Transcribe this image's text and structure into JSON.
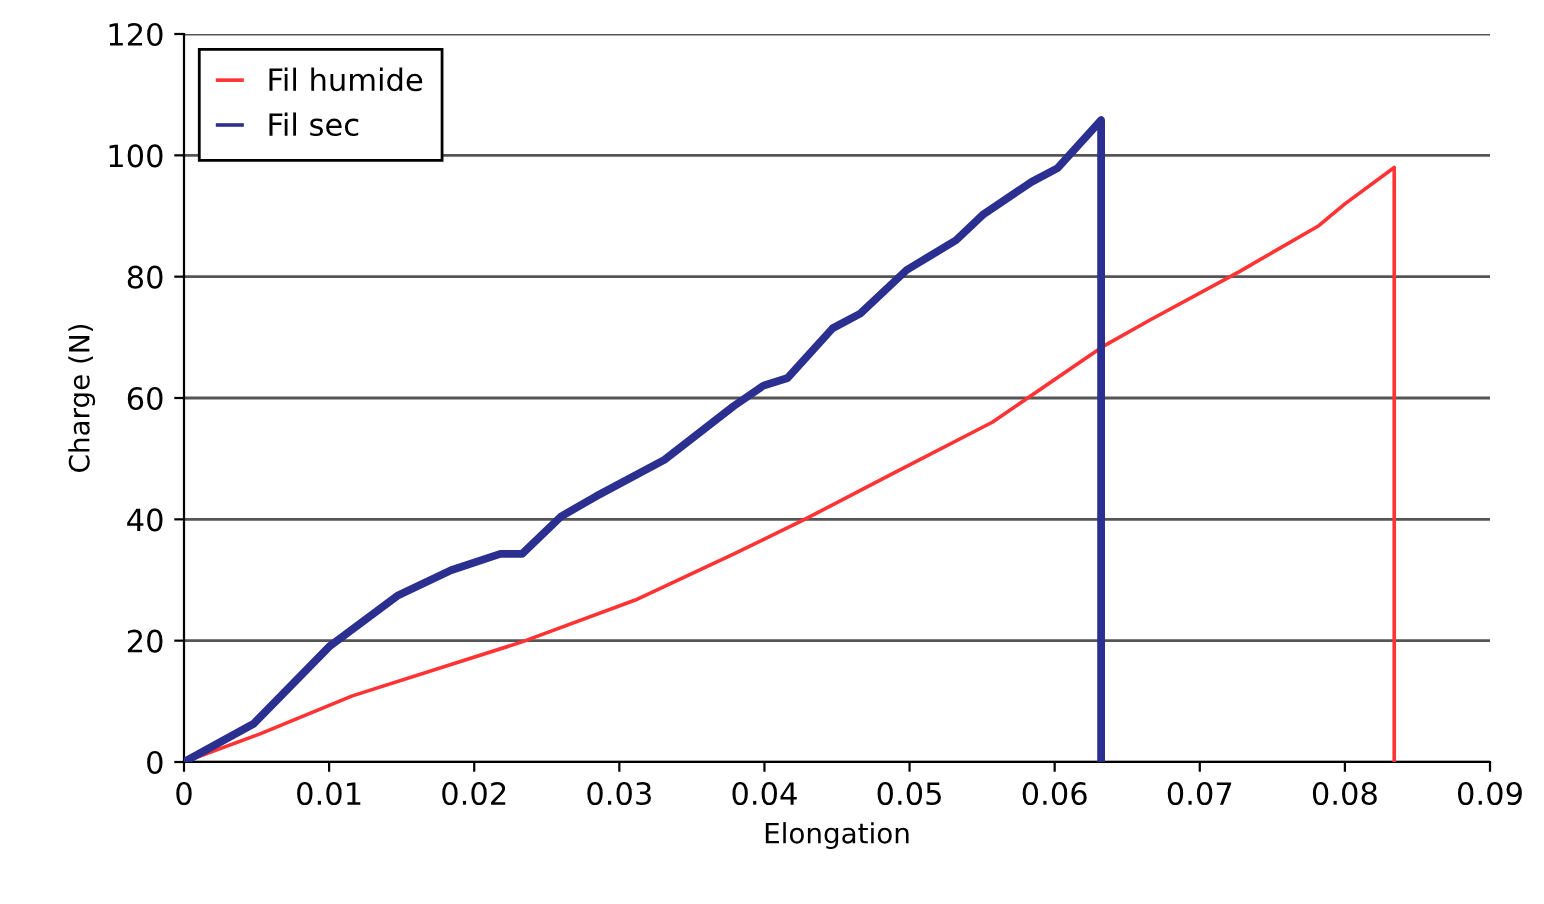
{
  "chart_data": {
    "type": "line",
    "xlabel": "Elongation",
    "ylabel": "Charge (N)",
    "xlim": [
      0,
      0.09
    ],
    "ylim": [
      0,
      120
    ],
    "xticks": [
      0,
      0.01,
      0.02,
      0.03,
      0.04,
      0.05,
      0.06,
      0.07,
      0.08,
      0.09
    ],
    "yticks": [
      0,
      20,
      40,
      60,
      80,
      100,
      120
    ],
    "grid": "y",
    "legend": "top left",
    "marker": "none",
    "line_style": "solid",
    "series": [
      {
        "name": "Fil humide",
        "color": "#ff3333",
        "x": [
          0,
          0.0052,
          0.0116,
          0.0233,
          0.0311,
          0.0379,
          0.0427,
          0.0488,
          0.0557,
          0.0634,
          0.0666,
          0.0727,
          0.0782,
          0.08,
          0.0834,
          0.0834
        ],
        "values": [
          0,
          4.6,
          10.9,
          19.8,
          26.7,
          34.3,
          39.9,
          47.5,
          56,
          68.6,
          72.9,
          80.8,
          88.4,
          92,
          98,
          0
        ]
      },
      {
        "name": "Fil sec",
        "color": "#2b2f8f",
        "x": [
          0,
          0.0048,
          0.01,
          0.0147,
          0.0184,
          0.0218,
          0.0233,
          0.026,
          0.0284,
          0.0331,
          0.0379,
          0.0399,
          0.0416,
          0.0447,
          0.0466,
          0.0498,
          0.0532,
          0.0551,
          0.0584,
          0.0602,
          0.0632,
          0.0632
        ],
        "values": [
          0,
          6.3,
          19,
          27.4,
          31.6,
          34.3,
          34.3,
          40.5,
          43.8,
          49.8,
          58.7,
          62,
          63.3,
          71.5,
          73.9,
          81.1,
          86,
          90.3,
          95.6,
          97.9,
          105.8,
          0
        ]
      }
    ]
  }
}
